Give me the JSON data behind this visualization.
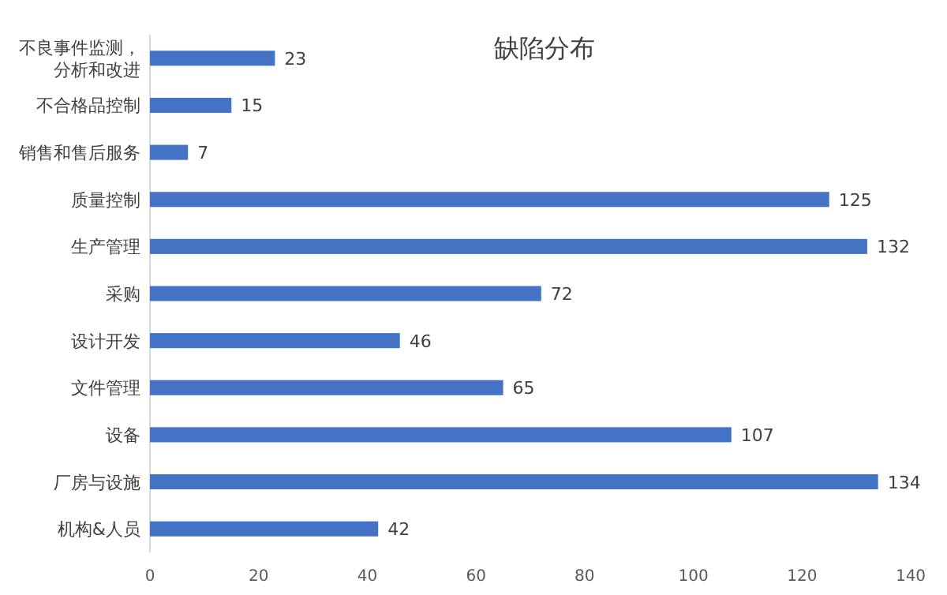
{
  "chart_data": {
    "type": "bar",
    "orientation": "horizontal",
    "title": "缺陷分布",
    "categories": [
      "不良事件监测，分析和改进",
      "不合格品控制",
      "销售和售后服务",
      "质量控制",
      "生产管理",
      "采购",
      "设计开发",
      "文件管理",
      "设备",
      "厂房与设施",
      "机构&人员"
    ],
    "values": [
      23,
      15,
      7,
      125,
      132,
      72,
      46,
      65,
      107,
      134,
      42
    ],
    "color": "#4472c4",
    "xlim": [
      0,
      140
    ],
    "xticks": [
      0,
      20,
      40,
      60,
      80,
      100,
      120,
      140
    ],
    "data_labels": true,
    "grid": false
  }
}
